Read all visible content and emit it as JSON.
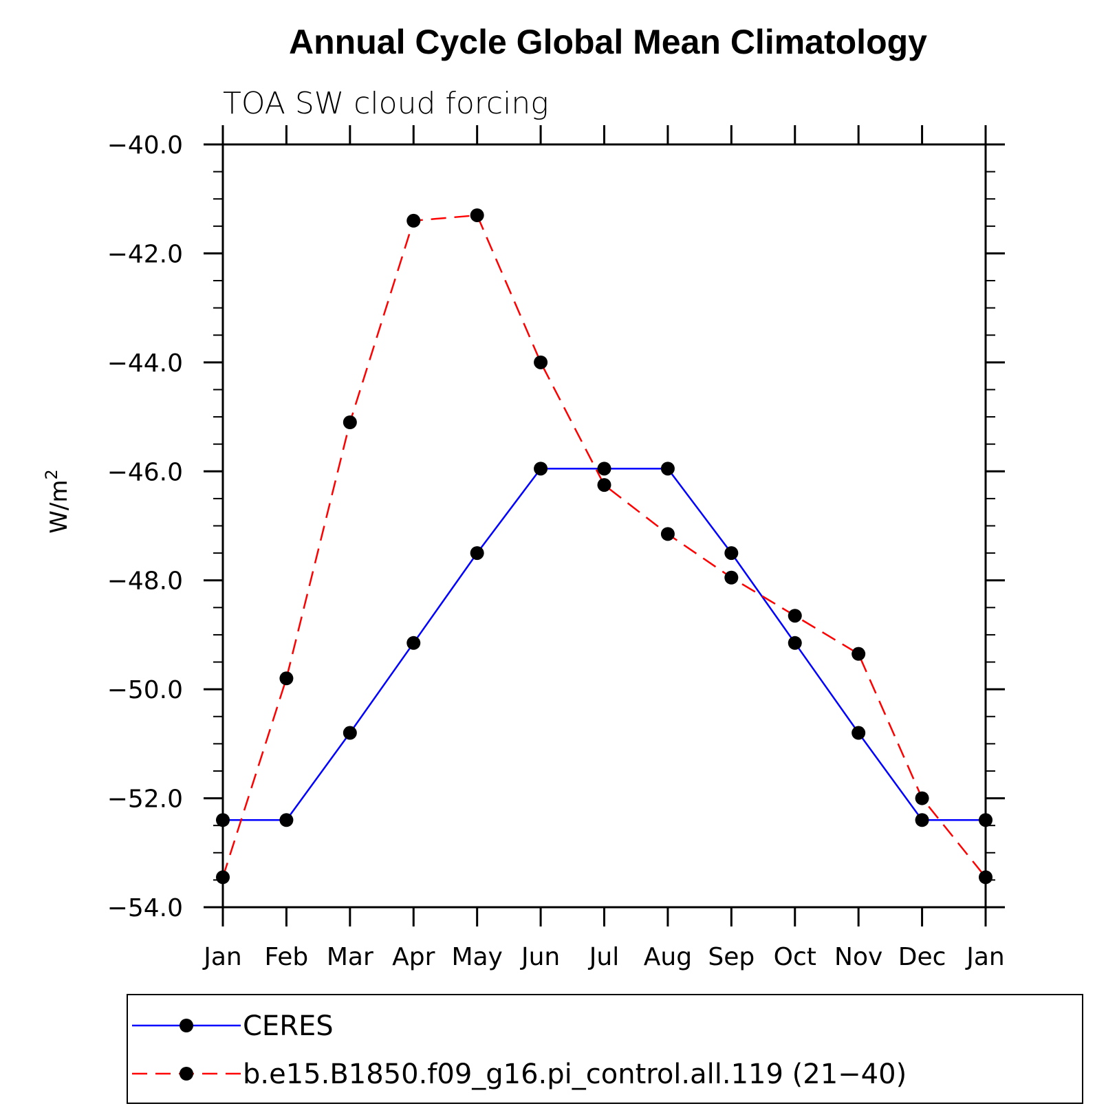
{
  "chart_data": {
    "type": "line",
    "title": "Annual Cycle Global Mean Climatology",
    "subtitle": "TOA SW cloud forcing",
    "ylabel_base": "W/m",
    "ylabel_sup": "2",
    "xlabel": "",
    "categories": [
      "Jan",
      "Feb",
      "Mar",
      "Apr",
      "May",
      "Jun",
      "Jul",
      "Aug",
      "Sep",
      "Oct",
      "Nov",
      "Dec",
      "Jan"
    ],
    "ylim": [
      -54.0,
      -40.0
    ],
    "yticks": [
      "-40.0",
      "-42.0",
      "-44.0",
      "-46.0",
      "-48.0",
      "-50.0",
      "-52.0",
      "-54.0"
    ],
    "ytick_values": [
      -40,
      -42,
      -44,
      -46,
      -48,
      -50,
      -52,
      -54
    ],
    "series": [
      {
        "name": "CERES",
        "color": "#0000ff",
        "line_style": "solid",
        "marker": "filled-circle",
        "values": [
          -52.4,
          -52.4,
          -50.8,
          -49.15,
          -47.5,
          -45.95,
          -45.95,
          -45.95,
          -47.5,
          -49.15,
          -50.8,
          -52.4,
          -52.4
        ]
      },
      {
        "name": "b.e15.B1850.f09_g16.pi_control.all.119 (21−40)",
        "color": "#ff0000",
        "line_style": "dashed",
        "marker": "filled-circle",
        "values": [
          -53.45,
          -49.8,
          -45.1,
          -41.4,
          -41.3,
          -44.0,
          -46.25,
          -47.15,
          -47.95,
          -48.65,
          -49.35,
          -52.0,
          -53.45
        ]
      }
    ],
    "grid": false,
    "legend_position": "bottom"
  }
}
